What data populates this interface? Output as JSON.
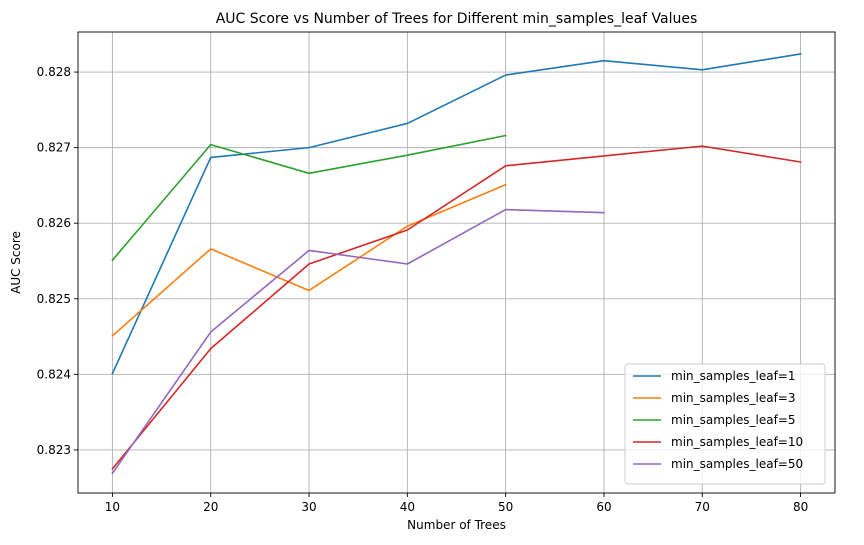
{
  "chart_data": {
    "type": "line",
    "title": "AUC Score vs Number of Trees for Different min_samples_leaf Values",
    "xlabel": "Number of Trees",
    "ylabel": "AUC Score",
    "xlim": [
      6.5,
      83.5
    ],
    "ylim": [
      0.82243,
      0.82853
    ],
    "xticks": [
      10,
      20,
      30,
      40,
      50,
      60,
      70,
      80
    ],
    "xtick_labels": [
      "10",
      "20",
      "30",
      "40",
      "50",
      "60",
      "70",
      "80"
    ],
    "yticks": [
      0.823,
      0.824,
      0.825,
      0.826,
      0.827,
      0.828
    ],
    "ytick_labels": [
      "0.823",
      "0.824",
      "0.825",
      "0.826",
      "0.827",
      "0.828"
    ],
    "grid": true,
    "legend_position": "lower-right",
    "series": [
      {
        "name": "min_samples_leaf=1",
        "color": "#1f77b4",
        "x": [
          10,
          20,
          30,
          40,
          50,
          60,
          70,
          80
        ],
        "y": [
          0.82401,
          0.82687,
          0.827,
          0.82732,
          0.82796,
          0.82815,
          0.82803,
          0.82824
        ]
      },
      {
        "name": "min_samples_leaf=3",
        "color": "#ff7f0e",
        "x": [
          10,
          20,
          30,
          40,
          50
        ],
        "y": [
          0.82451,
          0.82566,
          0.82511,
          0.82596,
          0.82651
        ]
      },
      {
        "name": "min_samples_leaf=5",
        "color": "#2ca02c",
        "x": [
          10,
          20,
          30,
          40,
          50
        ],
        "y": [
          0.82551,
          0.82704,
          0.82666,
          0.8269,
          0.82716
        ]
      },
      {
        "name": "min_samples_leaf=10",
        "color": "#d62728",
        "x": [
          10,
          20,
          30,
          40,
          50,
          60,
          70,
          80
        ],
        "y": [
          0.82275,
          0.82434,
          0.82546,
          0.82591,
          0.82676,
          0.82689,
          0.82702,
          0.82681
        ]
      },
      {
        "name": "min_samples_leaf=50",
        "color": "#9467bd",
        "x": [
          10,
          20,
          30,
          40,
          50,
          60
        ],
        "y": [
          0.82269,
          0.82456,
          0.82564,
          0.82546,
          0.82618,
          0.82614
        ]
      }
    ]
  }
}
